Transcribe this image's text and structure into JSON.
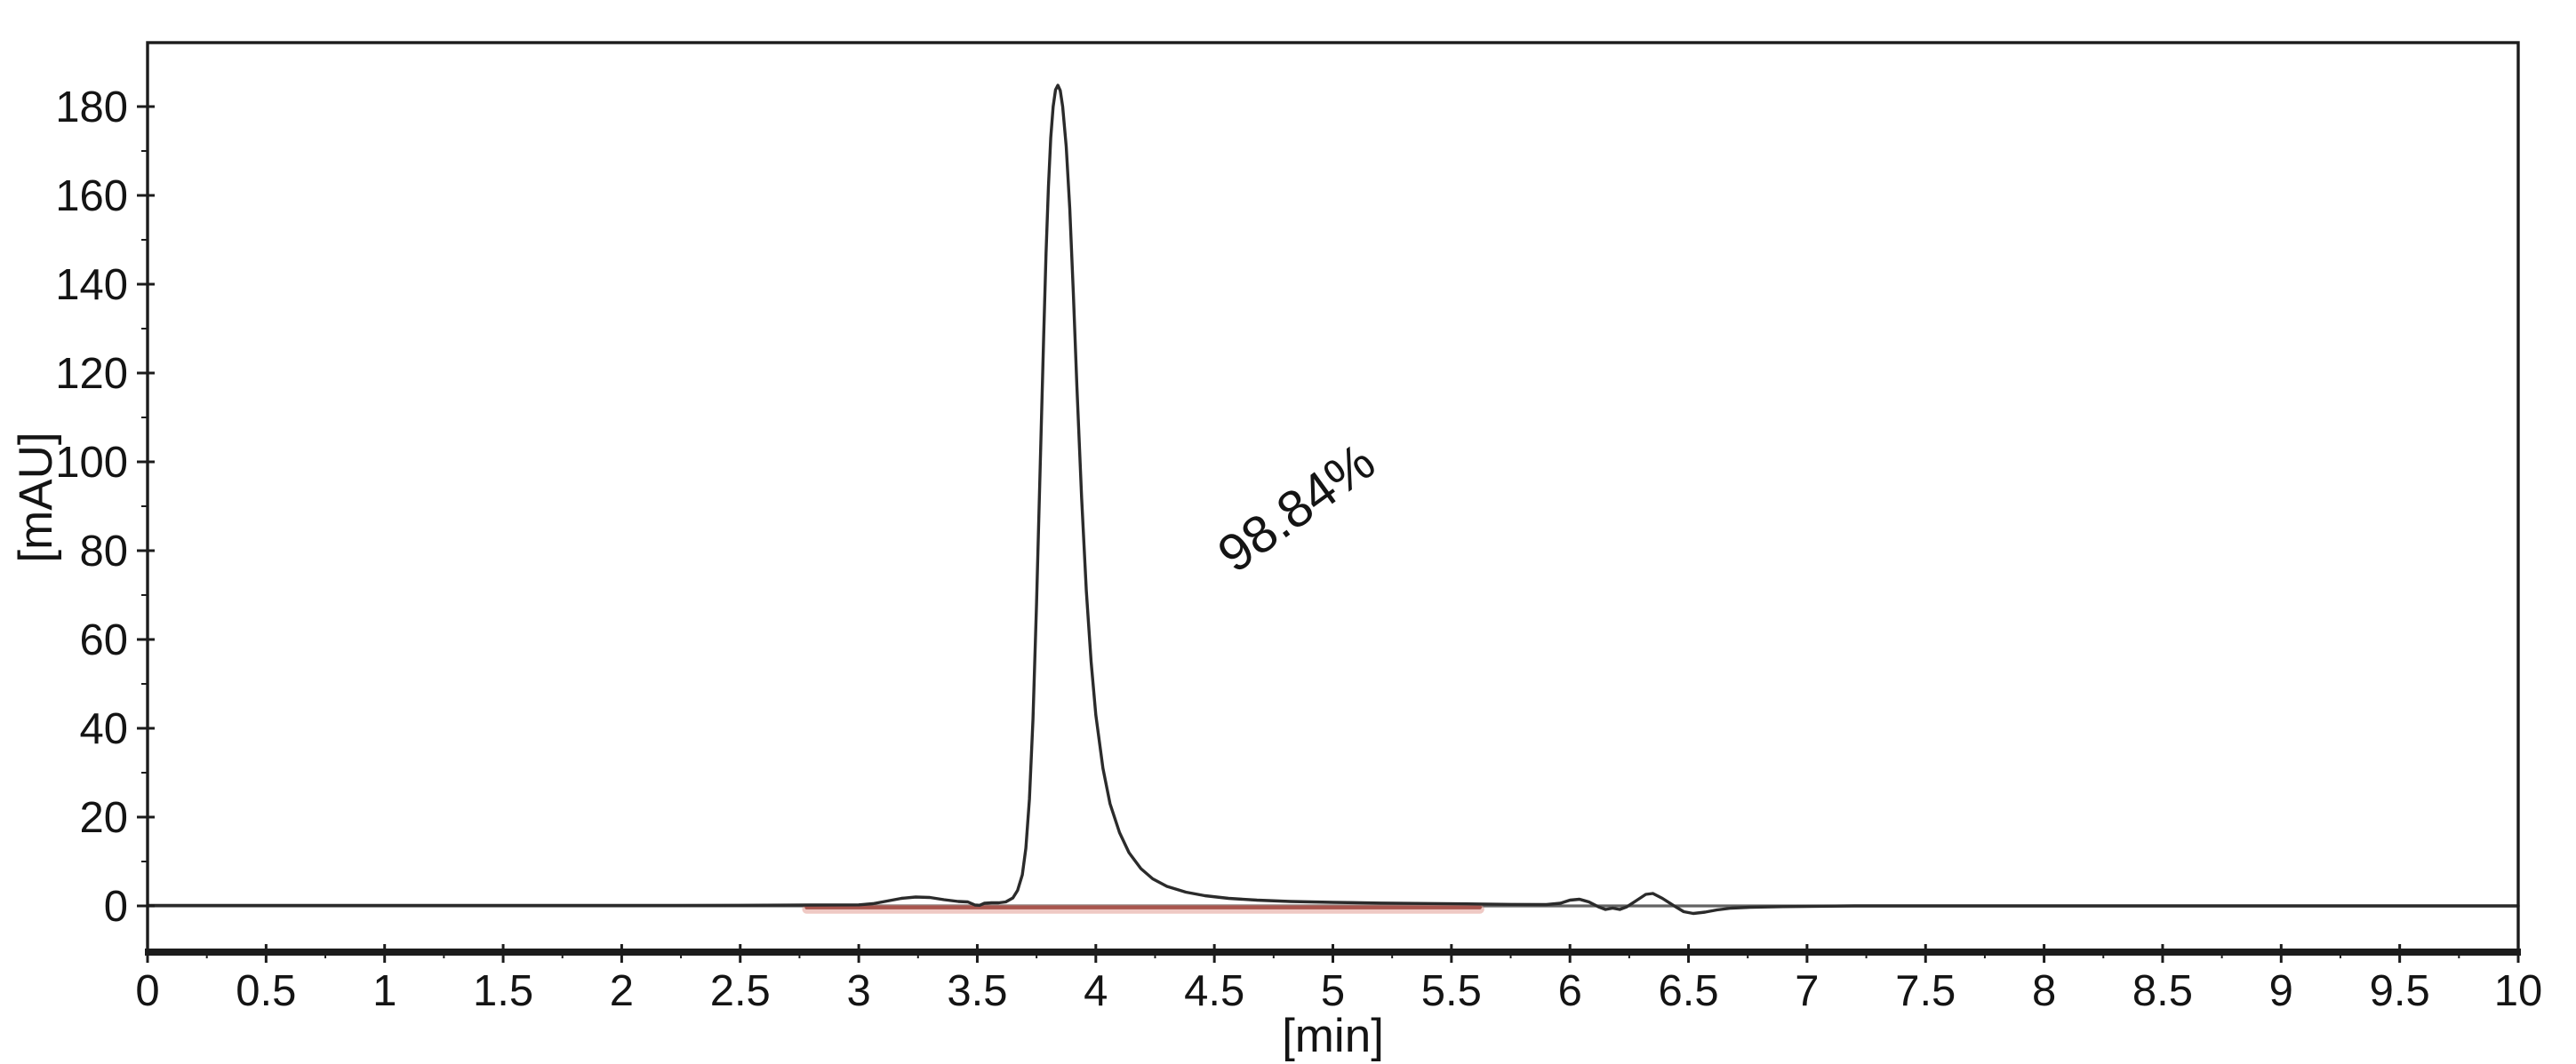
{
  "chart_data": {
    "type": "line",
    "title": "",
    "xlabel": "[min]",
    "ylabel": "[mAU]",
    "xlim": [
      0,
      10
    ],
    "ylim": [
      -10.4,
      194.4
    ],
    "x_major_tick_step": 0.5,
    "x_minor_tick_step": 0.25,
    "x_tick_labels": [
      "0",
      "0.5",
      "1",
      "1.5",
      "2",
      "2.5",
      "3",
      "3.5",
      "4",
      "4.5",
      "5",
      "5.5",
      "6",
      "6.5",
      "7",
      "7.5",
      "8",
      "8.5",
      "9",
      "9.5",
      "10"
    ],
    "x_tick_values": [
      0,
      0.5,
      1,
      1.5,
      2,
      2.5,
      3,
      3.5,
      4,
      4.5,
      5,
      5.5,
      6,
      6.5,
      7,
      7.5,
      8,
      8.5,
      9,
      9.5,
      10
    ],
    "y_major_tick_step": 20,
    "y_minor_tick_step": 10,
    "y_tick_labels": [
      "0",
      "20",
      "40",
      "60",
      "80",
      "100",
      "120",
      "140",
      "160",
      "180"
    ],
    "y_tick_values": [
      0,
      20,
      40,
      60,
      80,
      100,
      120,
      140,
      160,
      180
    ],
    "grid": "zero-line-only",
    "legend": "none",
    "annotation": {
      "text": "98.84%",
      "x_min": 4.89,
      "y_mau": 86.4,
      "rotation_deg": -36
    },
    "peaks": [
      {
        "retention_time_min": 3.84,
        "height_mau": 184.8,
        "label": "98.84%"
      }
    ],
    "colors": {
      "signal": "#2b2b2b",
      "integration_baseline": "#a8554e",
      "integration_baseline_halo": "rgba(224,148,138,0.5)",
      "zero_line": "#636363",
      "frame": "#1c1c1c",
      "text": "#141414",
      "background": "#ffffff"
    },
    "series": [
      {
        "name": "detector-signal",
        "color": "#2b2b2b",
        "points": [
          [
            0,
            0.1
          ],
          [
            0.5,
            0.1
          ],
          [
            1,
            0.1
          ],
          [
            1.5,
            0.1
          ],
          [
            2,
            0.1
          ],
          [
            2.5,
            0.15
          ],
          [
            2.8,
            0.2
          ],
          [
            3.0,
            0.25
          ],
          [
            3.06,
            0.5
          ],
          [
            3.12,
            1.1
          ],
          [
            3.18,
            1.7
          ],
          [
            3.24,
            2.0
          ],
          [
            3.3,
            1.9
          ],
          [
            3.36,
            1.4
          ],
          [
            3.42,
            1.0
          ],
          [
            3.46,
            0.9
          ],
          [
            3.49,
            0.2
          ],
          [
            3.51,
            0.15
          ],
          [
            3.53,
            0.6
          ],
          [
            3.56,
            0.7
          ],
          [
            3.59,
            0.7
          ],
          [
            3.62,
            0.9
          ],
          [
            3.65,
            1.8
          ],
          [
            3.67,
            3.5
          ],
          [
            3.69,
            7
          ],
          [
            3.705,
            13
          ],
          [
            3.72,
            24
          ],
          [
            3.735,
            42
          ],
          [
            3.75,
            68
          ],
          [
            3.765,
            98
          ],
          [
            3.78,
            128
          ],
          [
            3.79,
            147
          ],
          [
            3.8,
            162
          ],
          [
            3.81,
            173
          ],
          [
            3.82,
            180
          ],
          [
            3.83,
            183.8
          ],
          [
            3.84,
            184.8
          ],
          [
            3.85,
            183.6
          ],
          [
            3.86,
            180
          ],
          [
            3.875,
            171
          ],
          [
            3.89,
            157
          ],
          [
            3.905,
            138
          ],
          [
            3.92,
            117
          ],
          [
            3.94,
            92
          ],
          [
            3.96,
            71
          ],
          [
            3.98,
            55
          ],
          [
            4.0,
            43
          ],
          [
            4.03,
            31
          ],
          [
            4.06,
            23
          ],
          [
            4.1,
            16.5
          ],
          [
            4.14,
            12
          ],
          [
            4.19,
            8.4
          ],
          [
            4.24,
            6.1
          ],
          [
            4.3,
            4.4
          ],
          [
            4.38,
            3.1
          ],
          [
            4.46,
            2.3
          ],
          [
            4.56,
            1.7
          ],
          [
            4.68,
            1.3
          ],
          [
            4.82,
            1.0
          ],
          [
            5.0,
            0.8
          ],
          [
            5.2,
            0.65
          ],
          [
            5.4,
            0.55
          ],
          [
            5.6,
            0.45
          ],
          [
            5.75,
            0.35
          ],
          [
            5.9,
            0.3
          ],
          [
            5.96,
            0.6
          ],
          [
            6.0,
            1.3
          ],
          [
            6.04,
            1.5
          ],
          [
            6.08,
            0.9
          ],
          [
            6.12,
            -0.2
          ],
          [
            6.15,
            -0.8
          ],
          [
            6.18,
            -0.5
          ],
          [
            6.21,
            -0.8
          ],
          [
            6.24,
            -0.2
          ],
          [
            6.28,
            1.2
          ],
          [
            6.32,
            2.6
          ],
          [
            6.35,
            2.8
          ],
          [
            6.39,
            1.7
          ],
          [
            6.44,
            0.0
          ],
          [
            6.48,
            -1.3
          ],
          [
            6.52,
            -1.7
          ],
          [
            6.57,
            -1.4
          ],
          [
            6.62,
            -0.9
          ],
          [
            6.68,
            -0.5
          ],
          [
            6.76,
            -0.3
          ],
          [
            6.9,
            -0.15
          ],
          [
            7.2,
            0
          ],
          [
            7.6,
            0
          ],
          [
            8,
            0
          ],
          [
            8.5,
            0
          ],
          [
            9,
            0
          ],
          [
            9.5,
            0
          ],
          [
            10,
            0
          ]
        ]
      },
      {
        "name": "integration-baseline",
        "color": "#a8554e",
        "points": [
          [
            2.78,
            -0.35
          ],
          [
            5.62,
            -0.35
          ]
        ]
      }
    ]
  }
}
